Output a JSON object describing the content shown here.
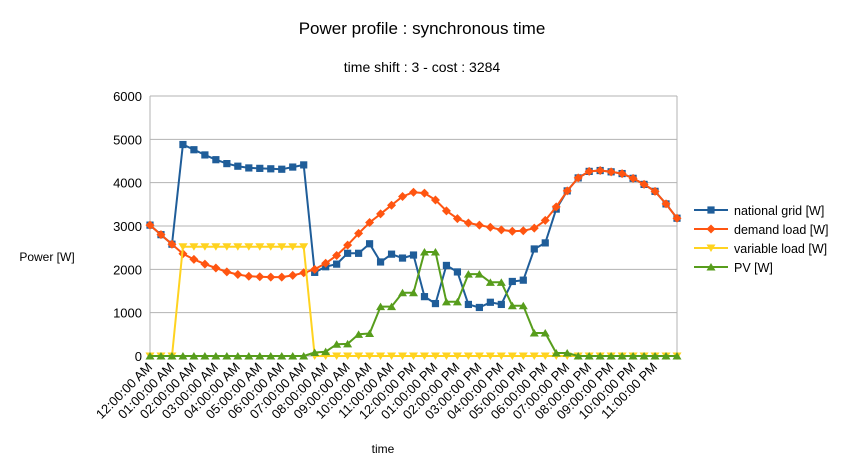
{
  "chart_data": {
    "type": "line",
    "title": "Power profile : synchronous time",
    "subtitle": "time shift : 3 - cost : 3284",
    "xlabel": "time",
    "ylabel": "Power [W]",
    "ylim": [
      0,
      6000
    ],
    "yticks": [
      0,
      1000,
      2000,
      3000,
      4000,
      5000,
      6000
    ],
    "grid": true,
    "legend_position": "right",
    "x_tick_labels": [
      "12:00:00 AM",
      "01:00:00 AM",
      "02:00:00 AM",
      "03:00:00 AM",
      "04:00:00 AM",
      "05:00:00 AM",
      "06:00:00 AM",
      "07:00:00 AM",
      "08:00:00 AM",
      "09:00:00 AM",
      "10:00:00 AM",
      "11:00:00 AM",
      "12:00:00 PM",
      "01:00:00 PM",
      "02:00:00 PM",
      "03:00:00 PM",
      "04:00:00 PM",
      "05:00:00 PM",
      "06:00:00 PM",
      "07:00:00 PM",
      "08:00:00 PM",
      "09:00:00 PM",
      "10:00:00 PM",
      "11:00:00 PM"
    ],
    "points_per_tick": 2,
    "series": [
      {
        "name": "national grid [W]",
        "color": "#1f5d99",
        "marker": "square",
        "values": [
          3020,
          2800,
          2580,
          4880,
          4760,
          4640,
          4530,
          4440,
          4380,
          4340,
          4330,
          4320,
          4310,
          4360,
          4410,
          1930,
          2060,
          2120,
          2370,
          2370,
          2590,
          2170,
          2350,
          2260,
          2330,
          1370,
          1210,
          2090,
          1940,
          1190,
          1120,
          1240,
          1190,
          1720,
          1750,
          2470,
          2610,
          3390,
          3810,
          4110,
          4260,
          4280,
          4250,
          4210,
          4100,
          3960,
          3800,
          3510,
          3180
        ]
      },
      {
        "name": "demand load [W]",
        "color": "#ff5511",
        "marker": "diamond",
        "values": [
          3020,
          2800,
          2580,
          2360,
          2230,
          2120,
          2030,
          1940,
          1880,
          1840,
          1830,
          1820,
          1820,
          1860,
          1920,
          2000,
          2140,
          2320,
          2560,
          2830,
          3080,
          3280,
          3480,
          3680,
          3780,
          3760,
          3600,
          3350,
          3170,
          3070,
          3020,
          2970,
          2910,
          2880,
          2890,
          2950,
          3130,
          3440,
          3810,
          4110,
          4260,
          4280,
          4250,
          4210,
          4100,
          3960,
          3800,
          3510,
          3180
        ]
      },
      {
        "name": "variable load [W]",
        "color": "#ffd320",
        "marker": "triangle-down",
        "values": [
          0,
          0,
          0,
          2520,
          2520,
          2520,
          2520,
          2520,
          2520,
          2520,
          2520,
          2520,
          2520,
          2520,
          2520,
          0,
          0,
          0,
          0,
          0,
          0,
          0,
          0,
          0,
          0,
          0,
          0,
          0,
          0,
          0,
          0,
          0,
          0,
          0,
          0,
          0,
          0,
          0,
          0,
          0,
          0,
          0,
          0,
          0,
          0,
          0,
          0,
          0,
          0
        ]
      },
      {
        "name": "PV [W]",
        "color": "#579d1c",
        "marker": "triangle-up",
        "values": [
          0,
          0,
          0,
          0,
          0,
          0,
          0,
          0,
          0,
          0,
          0,
          0,
          0,
          0,
          0,
          80,
          100,
          270,
          280,
          500,
          520,
          1140,
          1140,
          1460,
          1460,
          2400,
          2400,
          1250,
          1250,
          1890,
          1890,
          1700,
          1700,
          1160,
          1160,
          530,
          530,
          70,
          70,
          0,
          0,
          0,
          0,
          0,
          0,
          0,
          0,
          0,
          0
        ]
      }
    ]
  }
}
